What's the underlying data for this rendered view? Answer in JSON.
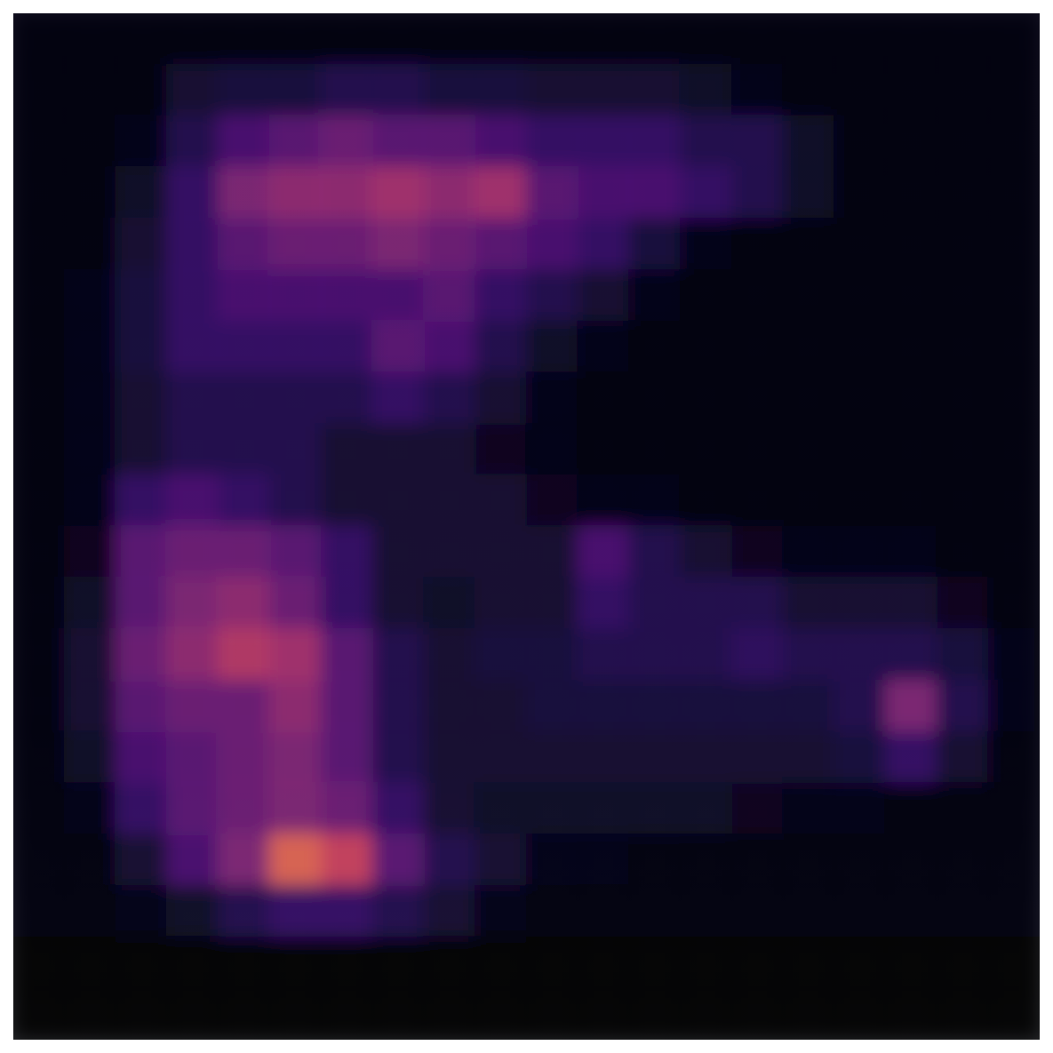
{
  "chart_data": {
    "type": "heatmap",
    "color": "magma",
    "color_range": [
      0,
      1
    ],
    "tick_labels": false,
    "cells": [
      [
        0.02,
        0.02,
        0.02,
        0.02,
        0.02,
        0.02,
        0.02,
        0.02,
        0.02,
        0.02,
        0.02,
        0.02,
        0.02,
        0.02,
        0.02,
        0.02,
        0.02,
        0.02,
        0.02,
        0.02
      ],
      [
        0.02,
        0.02,
        0.03,
        0.1,
        0.12,
        0.12,
        0.15,
        0.15,
        0.12,
        0.12,
        0.1,
        0.1,
        0.1,
        0.08,
        0.05,
        0.03,
        0.02,
        0.02,
        0.02,
        0.02
      ],
      [
        0.02,
        0.03,
        0.05,
        0.15,
        0.25,
        0.3,
        0.35,
        0.3,
        0.3,
        0.25,
        0.2,
        0.2,
        0.2,
        0.15,
        0.15,
        0.08,
        0.03,
        0.02,
        0.02,
        0.02
      ],
      [
        0.02,
        0.03,
        0.08,
        0.2,
        0.4,
        0.45,
        0.45,
        0.5,
        0.45,
        0.5,
        0.3,
        0.25,
        0.25,
        0.2,
        0.15,
        0.08,
        0.03,
        0.02,
        0.02,
        0.02
      ],
      [
        0.02,
        0.03,
        0.1,
        0.2,
        0.3,
        0.35,
        0.35,
        0.4,
        0.35,
        0.3,
        0.25,
        0.2,
        0.12,
        0.05,
        0.03,
        0.02,
        0.02,
        0.02,
        0.02,
        0.02
      ],
      [
        0.02,
        0.05,
        0.12,
        0.2,
        0.25,
        0.25,
        0.25,
        0.25,
        0.3,
        0.2,
        0.15,
        0.1,
        0.05,
        0.03,
        0.02,
        0.02,
        0.02,
        0.02,
        0.02,
        0.02
      ],
      [
        0.02,
        0.05,
        0.12,
        0.2,
        0.2,
        0.2,
        0.2,
        0.3,
        0.25,
        0.15,
        0.08,
        0.04,
        0.03,
        0.02,
        0.02,
        0.02,
        0.02,
        0.02,
        0.02,
        0.02
      ],
      [
        0.02,
        0.04,
        0.1,
        0.15,
        0.15,
        0.15,
        0.15,
        0.2,
        0.15,
        0.1,
        0.05,
        0.03,
        0.02,
        0.02,
        0.02,
        0.02,
        0.02,
        0.02,
        0.02,
        0.02
      ],
      [
        0.02,
        0.04,
        0.1,
        0.15,
        0.15,
        0.15,
        0.1,
        0.1,
        0.1,
        0.06,
        0.04,
        0.03,
        0.03,
        0.02,
        0.02,
        0.02,
        0.02,
        0.02,
        0.02,
        0.02
      ],
      [
        0.02,
        0.05,
        0.2,
        0.25,
        0.2,
        0.15,
        0.1,
        0.1,
        0.1,
        0.1,
        0.06,
        0.05,
        0.04,
        0.03,
        0.02,
        0.02,
        0.02,
        0.02,
        0.02,
        0.02
      ],
      [
        0.02,
        0.06,
        0.3,
        0.35,
        0.35,
        0.3,
        0.2,
        0.1,
        0.1,
        0.1,
        0.1,
        0.25,
        0.15,
        0.1,
        0.06,
        0.05,
        0.05,
        0.04,
        0.03,
        0.02
      ],
      [
        0.02,
        0.08,
        0.3,
        0.4,
        0.45,
        0.35,
        0.2,
        0.1,
        0.08,
        0.1,
        0.1,
        0.2,
        0.15,
        0.15,
        0.15,
        0.1,
        0.1,
        0.1,
        0.06,
        0.03
      ],
      [
        0.02,
        0.1,
        0.35,
        0.45,
        0.55,
        0.5,
        0.3,
        0.15,
        0.1,
        0.12,
        0.12,
        0.15,
        0.15,
        0.15,
        0.18,
        0.15,
        0.15,
        0.15,
        0.12,
        0.05
      ],
      [
        0.02,
        0.1,
        0.3,
        0.35,
        0.35,
        0.45,
        0.3,
        0.15,
        0.1,
        0.1,
        0.12,
        0.12,
        0.12,
        0.12,
        0.12,
        0.12,
        0.15,
        0.4,
        0.15,
        0.05
      ],
      [
        0.02,
        0.08,
        0.25,
        0.3,
        0.35,
        0.4,
        0.3,
        0.15,
        0.1,
        0.1,
        0.1,
        0.1,
        0.1,
        0.1,
        0.1,
        0.1,
        0.12,
        0.2,
        0.1,
        0.03
      ],
      [
        0.02,
        0.05,
        0.2,
        0.3,
        0.35,
        0.4,
        0.35,
        0.2,
        0.1,
        0.08,
        0.08,
        0.08,
        0.08,
        0.08,
        0.06,
        0.05,
        0.04,
        0.03,
        0.02,
        0.02
      ],
      [
        0.02,
        0.03,
        0.1,
        0.25,
        0.4,
        0.7,
        0.6,
        0.3,
        0.15,
        0.1,
        0.05,
        0.04,
        0.03,
        0.02,
        0.02,
        0.02,
        0.02,
        0.02,
        0.02,
        0.02
      ],
      [
        0.02,
        0.02,
        0.04,
        0.08,
        0.15,
        0.2,
        0.2,
        0.15,
        0.1,
        0.05,
        0.03,
        0.02,
        0.02,
        0.02,
        0.02,
        0.02,
        0.02,
        0.02,
        0.02,
        0.02
      ],
      [
        0.01,
        0.01,
        0.01,
        0.01,
        0.01,
        0.01,
        0.01,
        0.01,
        0.01,
        0.01,
        0.01,
        0.01,
        0.01,
        0.01,
        0.01,
        0.01,
        0.01,
        0.01,
        0.01,
        0.01
      ],
      [
        0.01,
        0.01,
        0.01,
        0.01,
        0.01,
        0.01,
        0.01,
        0.01,
        0.01,
        0.01,
        0.01,
        0.01,
        0.01,
        0.01,
        0.01,
        0.01,
        0.01,
        0.01,
        0.01,
        0.01
      ]
    ]
  }
}
